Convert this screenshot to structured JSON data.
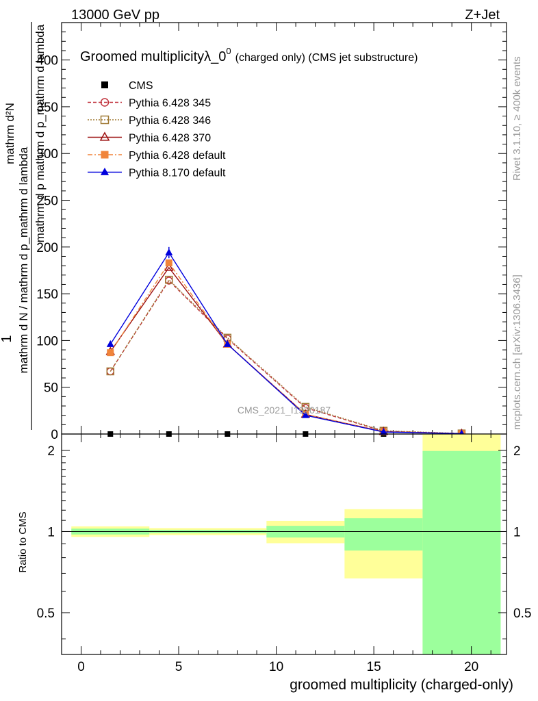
{
  "header": {
    "left": "13000 GeV pp",
    "right": "Z+Jet"
  },
  "side": {
    "rivet": "Rivet 3.1.10, ≥ 400k events",
    "mcplots": "mcplots.cern.ch [arXiv:1306.3436]"
  },
  "watermark": "CMS_2021_I1920187",
  "chart_data": [
    {
      "type": "line",
      "title": "Groomed multiplicityλ_0⁰",
      "title_parts": {
        "main": "Groomed multiplicityλ_0",
        "sup": "0",
        "sub": "(charged only) (CMS jet substructure)"
      },
      "ylabel": "1 / mathrm d N / mathrm d p_mathrm d lambda · mathrm d²N / mathrm d p mathrm d p_mathrm d lambda",
      "ylabel_parts": {
        "num": "mathrm d²N",
        "den1": "mathrm d p mathrm d p_mathrm d lambda",
        "pre": "1",
        "den2": "mathrm d N / mathrm d p_mathrm d lambda"
      },
      "xlim": [
        -1,
        21.8
      ],
      "ylim": [
        0,
        440
      ],
      "yticks": [
        0,
        50,
        100,
        150,
        200,
        250,
        300,
        350,
        400
      ],
      "x": [
        1.5,
        4.5,
        7.5,
        11.5,
        15.5,
        19.5
      ],
      "legend_position": "top-left",
      "series": [
        {
          "name": "CMS",
          "color": "#000000",
          "marker": "square-filled",
          "dash": "",
          "values": [
            0,
            0,
            0,
            0,
            0,
            0
          ]
        },
        {
          "name": "Pythia 6.428 345",
          "color": "#c0303a",
          "marker": "circle-open",
          "dash": "5,3",
          "values": [
            67,
            164,
            102,
            28,
            3,
            0.5
          ]
        },
        {
          "name": "Pythia 6.428 346",
          "color": "#a07a35",
          "marker": "square-open",
          "dash": "2,2",
          "values": [
            67,
            165,
            103,
            29,
            3.5,
            0.6
          ]
        },
        {
          "name": "Pythia 6.428 370",
          "color": "#9c1010",
          "marker": "triangle-open",
          "dash": "",
          "values": [
            88,
            178,
            96,
            21,
            2.5,
            0.4
          ]
        },
        {
          "name": "Pythia 6.428 default",
          "color": "#f0843a",
          "marker": "square-filled",
          "dash": "7,3,2,3",
          "values": [
            87,
            183,
            96,
            21,
            2.5,
            0.4
          ]
        },
        {
          "name": "Pythia 8.170 default",
          "color": "#0000dd",
          "marker": "triangle-filled",
          "dash": "",
          "values": [
            96,
            194,
            96,
            20,
            2.2,
            0.4
          ],
          "error_at": {
            "x": 4.5,
            "low": 188,
            "high": 200
          }
        }
      ]
    },
    {
      "type": "area",
      "ylabel": "Ratio to CMS",
      "xlabel": "groomed multiplicity (charged-only)",
      "scale": "log",
      "ylim": [
        0.35,
        2.3
      ],
      "yticks": [
        0.5,
        1,
        2
      ],
      "ytick_labels": [
        "0.5",
        "1",
        "2"
      ],
      "xlim": [
        -1,
        21.8
      ],
      "xticks": [
        0,
        5,
        10,
        15,
        20
      ],
      "reference": 1,
      "bands": [
        {
          "x0": -0.5,
          "x1": 3.5,
          "inner": [
            0.975,
            1.025
          ],
          "outer": [
            0.955,
            1.045
          ]
        },
        {
          "x0": 3.5,
          "x1": 9.5,
          "inner": [
            0.985,
            1.015
          ],
          "outer": [
            0.97,
            1.03
          ]
        },
        {
          "x0": 9.5,
          "x1": 13.5,
          "inner": [
            0.95,
            1.05
          ],
          "outer": [
            0.905,
            1.095
          ]
        },
        {
          "x0": 13.5,
          "x1": 17.5,
          "inner": [
            0.85,
            1.12
          ],
          "outer": [
            0.67,
            1.21
          ]
        },
        {
          "x0": 17.5,
          "x1": 21.5,
          "inner": [
            0.35,
            1.99
          ],
          "outer": [
            0.35,
            2.3
          ]
        }
      ],
      "colors": {
        "inner": "#9cff9c",
        "outer": "#ffff99"
      }
    }
  ]
}
